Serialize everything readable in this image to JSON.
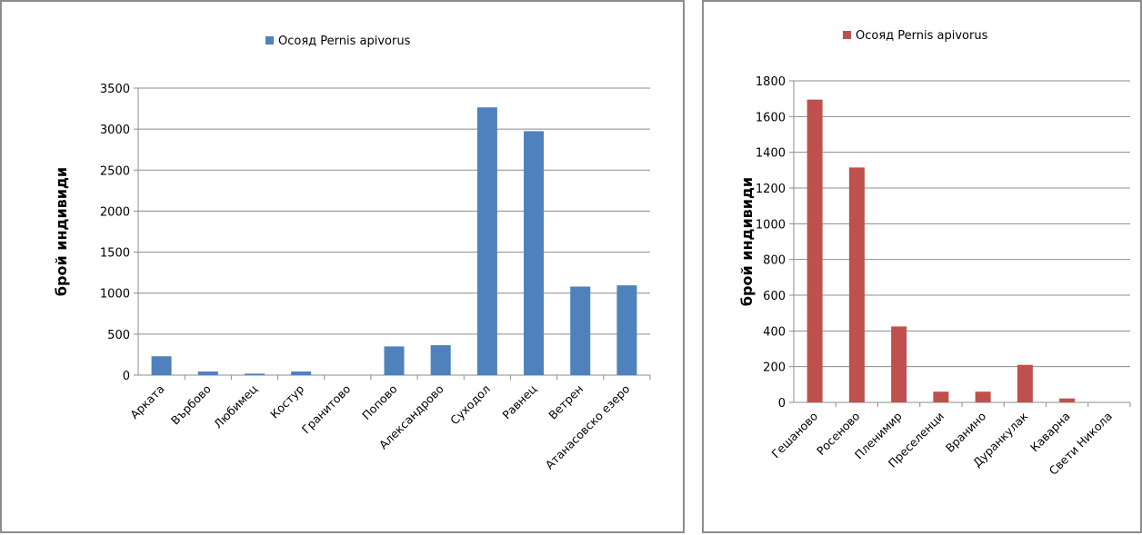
{
  "chart_data": [
    {
      "type": "bar",
      "title": "",
      "xlabel": "",
      "ylabel": "брой индивиди",
      "ylim": [
        0,
        3500
      ],
      "yticks": [
        0,
        500,
        1000,
        1500,
        2000,
        2500,
        3000,
        3500
      ],
      "grid": true,
      "legend": "top",
      "categories": [
        "Арката",
        "Върбово",
        "Любимец",
        "Костур",
        "Гранитово",
        "Попово",
        "Александрово",
        "Суходол",
        "Равнец",
        "Ветрен",
        "Атанасовско езеро"
      ],
      "series": [
        {
          "name": "Осояд Pernis apivorus",
          "color": "#4f81bd",
          "values": [
            230,
            45,
            18,
            45,
            0,
            350,
            365,
            3265,
            2975,
            1080,
            1095
          ]
        }
      ]
    },
    {
      "type": "bar",
      "title": "",
      "xlabel": "",
      "ylabel": "брой индивиди",
      "ylim": [
        0,
        1800
      ],
      "yticks": [
        0,
        200,
        400,
        600,
        800,
        1000,
        1200,
        1400,
        1600,
        1800
      ],
      "grid": true,
      "legend": "top",
      "categories": [
        "Гешаново",
        "Росеново",
        "Пленимир",
        "Преселенци",
        "Вранино",
        "Дуранкулак",
        "Каварна",
        "Свети Никола"
      ],
      "series": [
        {
          "name": "Осояд Pernis apivorus",
          "color": "#c0504d",
          "values": [
            1695,
            1315,
            425,
            60,
            60,
            210,
            22,
            0
          ]
        }
      ]
    }
  ]
}
